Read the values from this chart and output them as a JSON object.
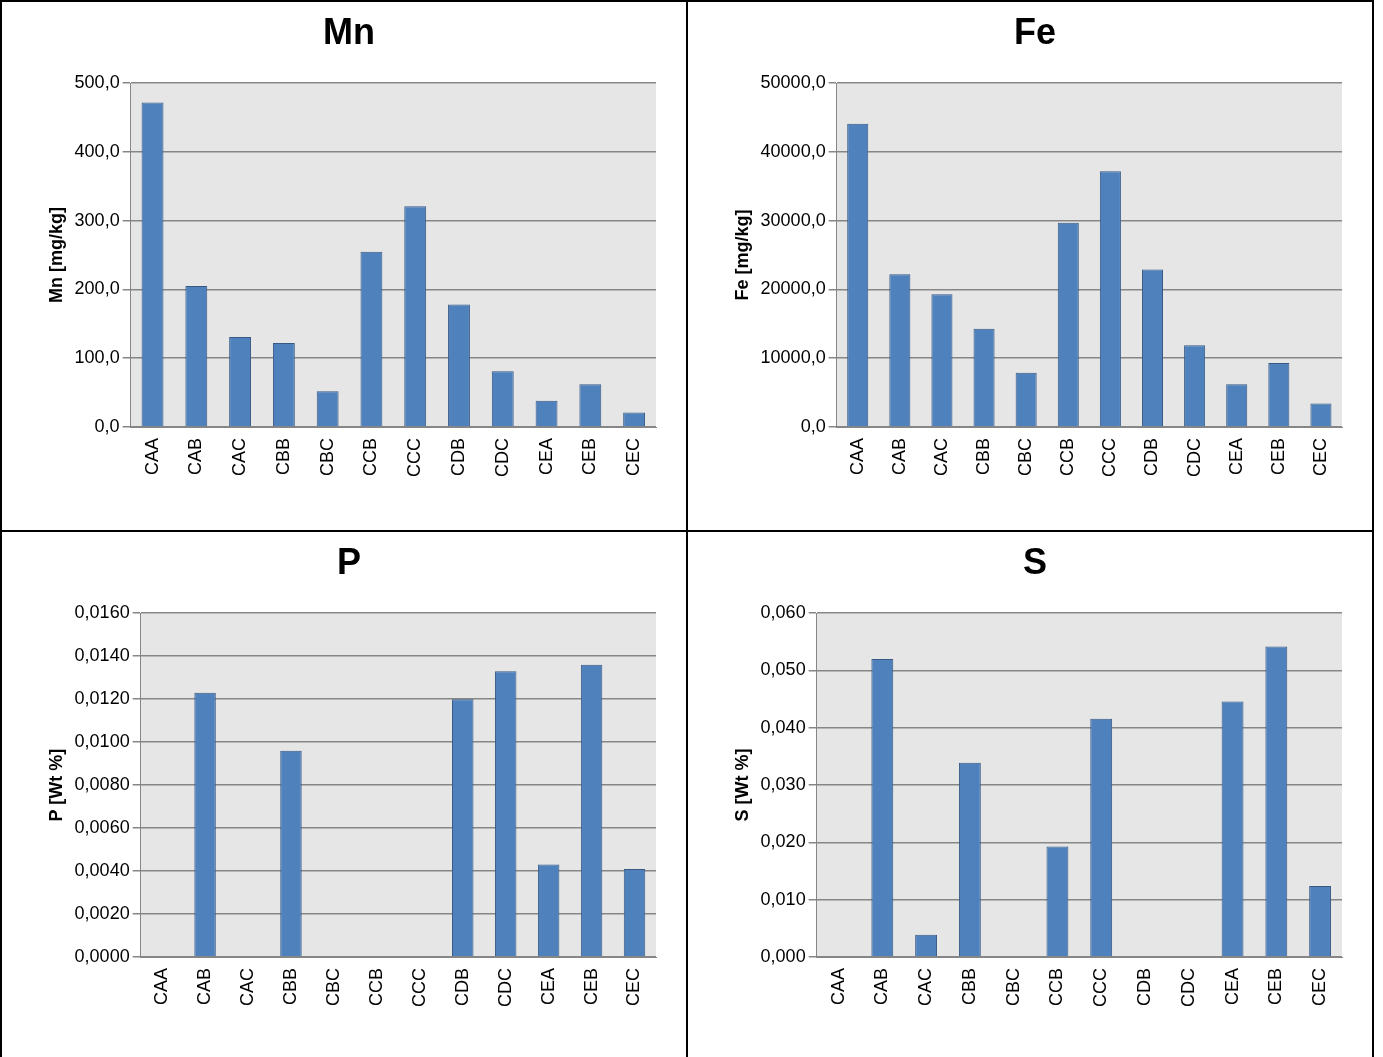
{
  "chart_data": [
    {
      "type": "bar",
      "title": "Mn",
      "ylabel": "Mn [mg/kg]",
      "categories": [
        "CAA",
        "CAB",
        "CAC",
        "CBB",
        "CBC",
        "CCB",
        "CCC",
        "CDB",
        "CDC",
        "CEA",
        "CEB",
        "CEC"
      ],
      "values": [
        472,
        205,
        131,
        122,
        52,
        255,
        321,
        178,
        81,
        38,
        62,
        21
      ],
      "color": "#4f81bd",
      "ylim": [
        0,
        500
      ],
      "yticks": [
        {
          "value": 0,
          "label": "0,0"
        },
        {
          "value": 100,
          "label": "100,0"
        },
        {
          "value": 200,
          "label": "200,0"
        },
        {
          "value": 300,
          "label": "300,0"
        },
        {
          "value": 400,
          "label": "400,0"
        },
        {
          "value": 500,
          "label": "500,0"
        }
      ],
      "grid": "y",
      "legend": false
    },
    {
      "type": "bar",
      "title": "Fe",
      "ylabel": "Fe [mg/kg]",
      "categories": [
        "CAA",
        "CAB",
        "CAC",
        "CBB",
        "CBC",
        "CCB",
        "CCC",
        "CDB",
        "CDC",
        "CEA",
        "CEB",
        "CEC"
      ],
      "values": [
        44100,
        22200,
        19300,
        14300,
        7900,
        29700,
        37200,
        22900,
        11900,
        6200,
        9300,
        3400
      ],
      "color": "#4f81bd",
      "ylim": [
        0,
        50000
      ],
      "yticks": [
        {
          "value": 0,
          "label": "0,0"
        },
        {
          "value": 10000,
          "label": "10000,0"
        },
        {
          "value": 20000,
          "label": "20000,0"
        },
        {
          "value": 30000,
          "label": "30000,0"
        },
        {
          "value": 40000,
          "label": "40000,0"
        },
        {
          "value": 50000,
          "label": "50000,0"
        }
      ],
      "grid": "y",
      "legend": false
    },
    {
      "type": "bar",
      "title": "P",
      "ylabel": "P [Wt %]",
      "categories": [
        "CAA",
        "CAB",
        "CAC",
        "CBB",
        "CBC",
        "CCB",
        "CCC",
        "CDB",
        "CDC",
        "CEA",
        "CEB",
        "CEC"
      ],
      "values": [
        null,
        0.0123,
        null,
        0.0096,
        null,
        null,
        null,
        0.012,
        0.0133,
        0.0043,
        0.0136,
        0.0041
      ],
      "color": "#4f81bd",
      "ylim": [
        0,
        0.016
      ],
      "yticks": [
        {
          "value": 0,
          "label": "0,0000"
        },
        {
          "value": 0.002,
          "label": "0,0020"
        },
        {
          "value": 0.004,
          "label": "0,0040"
        },
        {
          "value": 0.006,
          "label": "0,0060"
        },
        {
          "value": 0.008,
          "label": "0,0080"
        },
        {
          "value": 0.01,
          "label": "0,0100"
        },
        {
          "value": 0.012,
          "label": "0,0120"
        },
        {
          "value": 0.014,
          "label": "0,0140"
        },
        {
          "value": 0.016,
          "label": "0,0160"
        }
      ],
      "grid": "y",
      "legend": false
    },
    {
      "type": "bar",
      "title": "S",
      "ylabel": "S [Wt %]",
      "categories": [
        "CAA",
        "CAB",
        "CAC",
        "CBB",
        "CBC",
        "CCB",
        "CCC",
        "CDB",
        "CDC",
        "CEA",
        "CEB",
        "CEC"
      ],
      "values": [
        null,
        0.052,
        0.0039,
        0.0339,
        null,
        0.0193,
        0.0416,
        null,
        null,
        0.0446,
        0.0542,
        0.0124
      ],
      "color": "#4f81bd",
      "ylim": [
        0,
        0.06
      ],
      "yticks": [
        {
          "value": 0,
          "label": "0,000"
        },
        {
          "value": 0.01,
          "label": "0,010"
        },
        {
          "value": 0.02,
          "label": "0,020"
        },
        {
          "value": 0.03,
          "label": "0,030"
        },
        {
          "value": 0.04,
          "label": "0,040"
        },
        {
          "value": 0.05,
          "label": "0,050"
        },
        {
          "value": 0.06,
          "label": "0,060"
        }
      ],
      "grid": "y",
      "legend": false
    }
  ]
}
